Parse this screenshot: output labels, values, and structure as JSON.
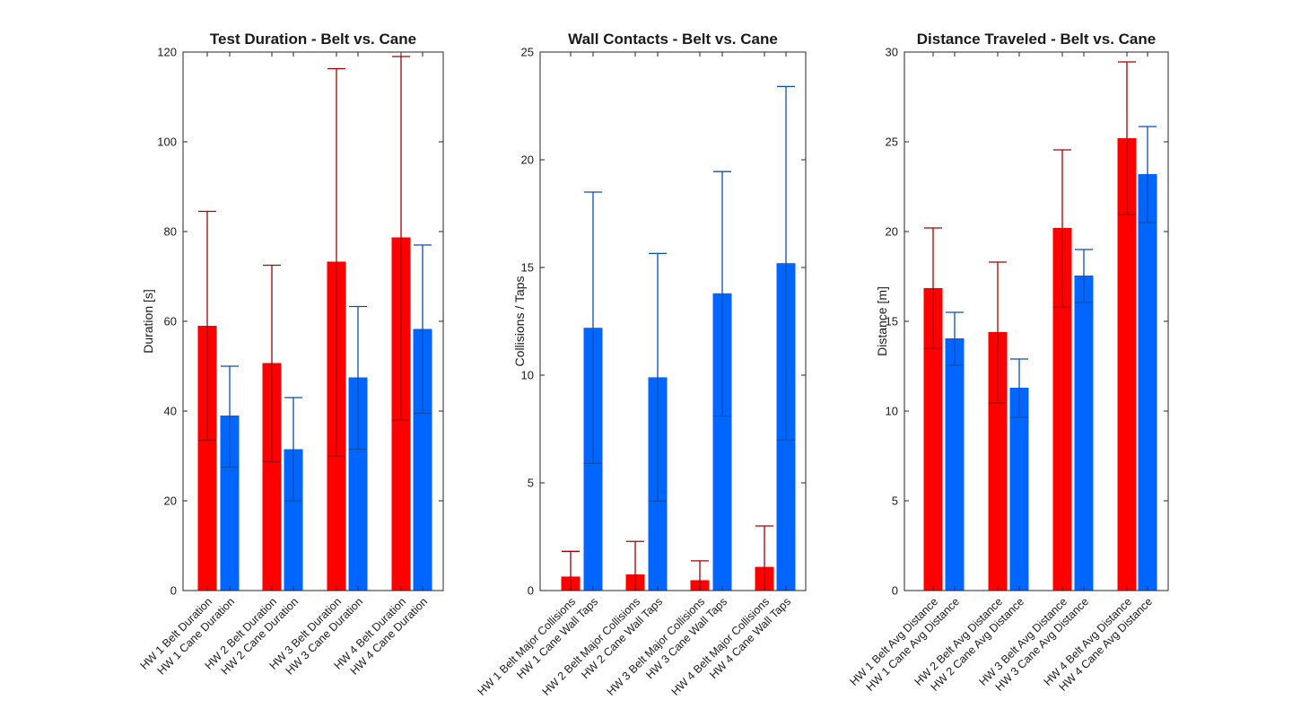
{
  "colors": {
    "belt": "#ff0000",
    "belt_err": "#a80000",
    "cane": "#0066ff",
    "cane_err": "#0a4fae"
  },
  "chart_data": [
    {
      "type": "bar",
      "title": "Test Duration - Belt vs. Cane",
      "xlabel": "",
      "ylabel": "Duration [s]",
      "ylim": [
        0,
        120
      ],
      "yticks": [
        0,
        20,
        40,
        60,
        80,
        100,
        120
      ],
      "categories": [
        "HW 1 Belt Duration",
        "HW 1 Cane Duration",
        "HW 2 Belt Duration",
        "HW 2 Cane Duration",
        "HW 3 Belt Duration",
        "HW 3 Cane Duration",
        "HW 4 Belt Duration",
        "HW 4 Cane Duration"
      ],
      "values": [
        59,
        39,
        50.7,
        31.5,
        73.3,
        47.5,
        78.7,
        58.3
      ],
      "err_low": [
        33.5,
        27.5,
        28.7,
        20,
        30,
        31.5,
        38,
        39.5
      ],
      "err_high": [
        84.5,
        50,
        72.5,
        43,
        116.3,
        63.3,
        119,
        77
      ],
      "grid": false
    },
    {
      "type": "bar",
      "title": "Wall Contacts - Belt vs. Cane",
      "xlabel": "",
      "ylabel": "Collisions / Taps",
      "ylim": [
        0,
        25
      ],
      "yticks": [
        0,
        5,
        10,
        15,
        20,
        25
      ],
      "categories": [
        "HW 1 Belt Major Collisions",
        "HW 1 Cane Wall Taps",
        "HW 2 Belt Major Collisions",
        "HW 2 Cane Wall Taps",
        "HW 3 Belt Major Collisions",
        "HW 3 Cane Wall Taps",
        "HW 4 Belt Major Collisions",
        "HW 4 Cane Wall Taps"
      ],
      "values": [
        0.65,
        12.2,
        0.75,
        9.9,
        0.48,
        13.8,
        1.1,
        15.2
      ],
      "err_low": [
        0,
        5.9,
        0,
        4.15,
        0,
        8.1,
        0,
        7
      ],
      "err_high": [
        1.82,
        18.5,
        2.28,
        15.65,
        1.38,
        19.45,
        3,
        23.4
      ],
      "grid": false
    },
    {
      "type": "bar",
      "title": "Distance Traveled -  Belt vs. Cane",
      "xlabel": "",
      "ylabel": "Distance [m]",
      "ylim": [
        0,
        30
      ],
      "yticks": [
        0,
        5,
        10,
        15,
        20,
        25,
        30
      ],
      "categories": [
        "HW 1 Belt Avg Distance",
        "HW 1 Cane Avg Distance",
        "HW 2 Belt Avg Distance",
        "HW 2 Cane Avg Distance",
        "HW 3 Belt Avg Distance",
        "HW 3 Cane Avg Distance",
        "HW 4 Belt Avg Distance",
        "HW 4 Cane Avg Distance"
      ],
      "values": [
        16.85,
        14.05,
        14.4,
        11.3,
        20.2,
        17.55,
        25.2,
        23.2
      ],
      "err_low": [
        13.5,
        12.55,
        10.45,
        9.65,
        15.8,
        16.05,
        20.95,
        20.5
      ],
      "err_high": [
        20.2,
        15.5,
        18.3,
        12.9,
        24.55,
        19.0,
        29.45,
        25.85
      ],
      "grid": false
    }
  ]
}
